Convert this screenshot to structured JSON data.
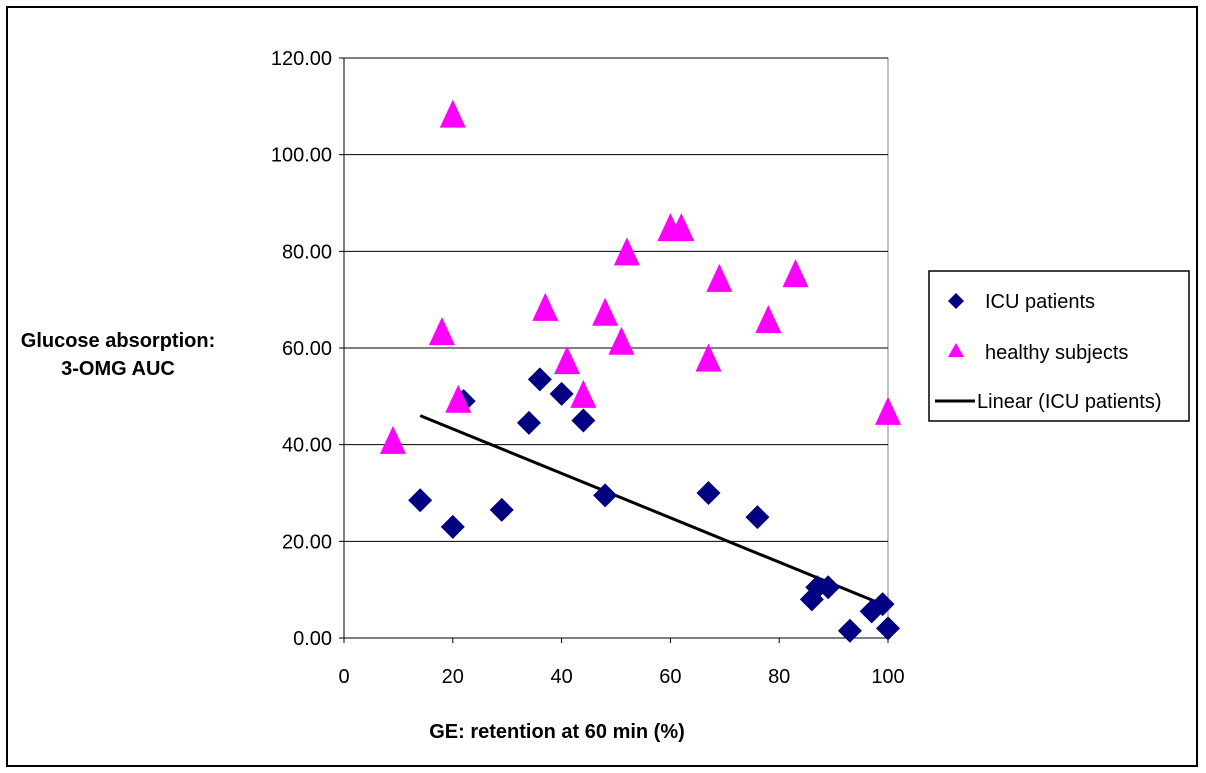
{
  "chart_data": {
    "type": "scatter",
    "title": "",
    "xlabel": "GE: retention at 60 min (%)",
    "ylabel_lines": [
      "Glucose absorption:",
      "3-OMG AUC"
    ],
    "xlim": [
      0,
      100
    ],
    "ylim": [
      0,
      120
    ],
    "x_ticks": [
      "0",
      "20",
      "40",
      "60",
      "80",
      "100"
    ],
    "y_ticks": [
      "0.00",
      "20.00",
      "40.00",
      "60.00",
      "80.00",
      "100.00",
      "120.00"
    ],
    "grid": "horizontal major gridlines",
    "legend_position": "right",
    "colors": {
      "icu": "#000080",
      "healthy": "#ff00ff",
      "trend": "#000000",
      "grid": "#000000"
    },
    "series": [
      {
        "name": "ICU patients",
        "marker": "diamond",
        "points": [
          [
            14,
            28.5
          ],
          [
            20,
            23
          ],
          [
            22,
            49
          ],
          [
            29,
            26.5
          ],
          [
            34,
            44.5
          ],
          [
            36,
            53.5
          ],
          [
            40,
            50.5
          ],
          [
            44,
            45
          ],
          [
            48,
            29.5
          ],
          [
            67,
            30
          ],
          [
            76,
            25
          ],
          [
            86,
            8
          ],
          [
            87,
            10.5
          ],
          [
            89,
            10.5
          ],
          [
            93,
            1.5
          ],
          [
            97,
            5.5
          ],
          [
            99,
            7
          ],
          [
            100,
            2
          ]
        ]
      },
      {
        "name": "healthy subjects",
        "marker": "triangle",
        "points": [
          [
            9,
            41
          ],
          [
            18,
            63.5
          ],
          [
            20,
            108.5
          ],
          [
            21,
            49.5
          ],
          [
            37,
            68.5
          ],
          [
            41,
            57.5
          ],
          [
            44,
            50.5
          ],
          [
            48,
            67.5
          ],
          [
            51,
            61.5
          ],
          [
            52,
            80
          ],
          [
            60,
            85
          ],
          [
            62,
            85
          ],
          [
            67,
            58
          ],
          [
            69,
            74.5
          ],
          [
            78,
            66
          ],
          [
            83,
            75.5
          ],
          [
            100,
            47
          ]
        ]
      },
      {
        "name": "Linear (ICU patients)",
        "marker": "line",
        "points": [
          [
            14,
            46
          ],
          [
            100,
            6.5
          ]
        ]
      }
    ]
  }
}
